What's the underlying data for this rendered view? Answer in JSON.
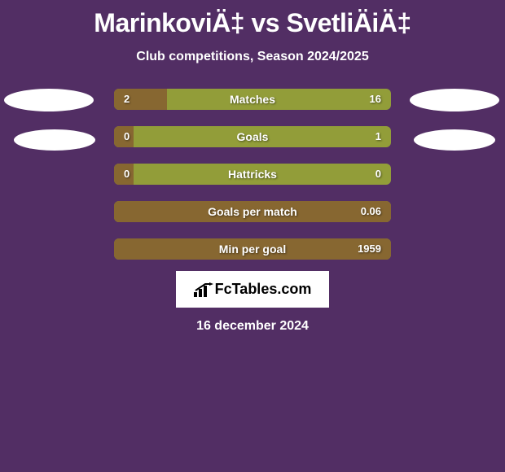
{
  "header": {
    "player1": "MarinkoviÄ‡",
    "vs": "vs",
    "player2": "SvetliÄiÄ‡",
    "subtitle": "Club competitions, Season 2024/2025"
  },
  "bars": [
    {
      "label": "Matches",
      "left_val": "2",
      "right_val": "16",
      "fill_pct": 19,
      "fill_color": "#876731",
      "bg_color": "#929d39"
    },
    {
      "label": "Goals",
      "left_val": "0",
      "right_val": "1",
      "fill_pct": 7,
      "fill_color": "#876731",
      "bg_color": "#929d39"
    },
    {
      "label": "Hattricks",
      "left_val": "0",
      "right_val": "0",
      "fill_pct": 7,
      "fill_color": "#876731",
      "bg_color": "#929d39"
    },
    {
      "label": "Goals per match",
      "left_val": "",
      "right_val": "0.06",
      "fill_pct": 100,
      "fill_color": "#876731",
      "bg_color": "#929d39"
    },
    {
      "label": "Min per goal",
      "left_val": "",
      "right_val": "1959",
      "fill_pct": 100,
      "fill_color": "#876731",
      "bg_color": "#929d39"
    }
  ],
  "footer": {
    "logo_text": "FcTables.com",
    "date": "16 december 2024"
  },
  "style": {
    "background_color": "#522e64",
    "bar_background": "#929d39",
    "bar_fill": "#876731",
    "text_color": "#ffffff",
    "oval_color": "#ffffff"
  }
}
